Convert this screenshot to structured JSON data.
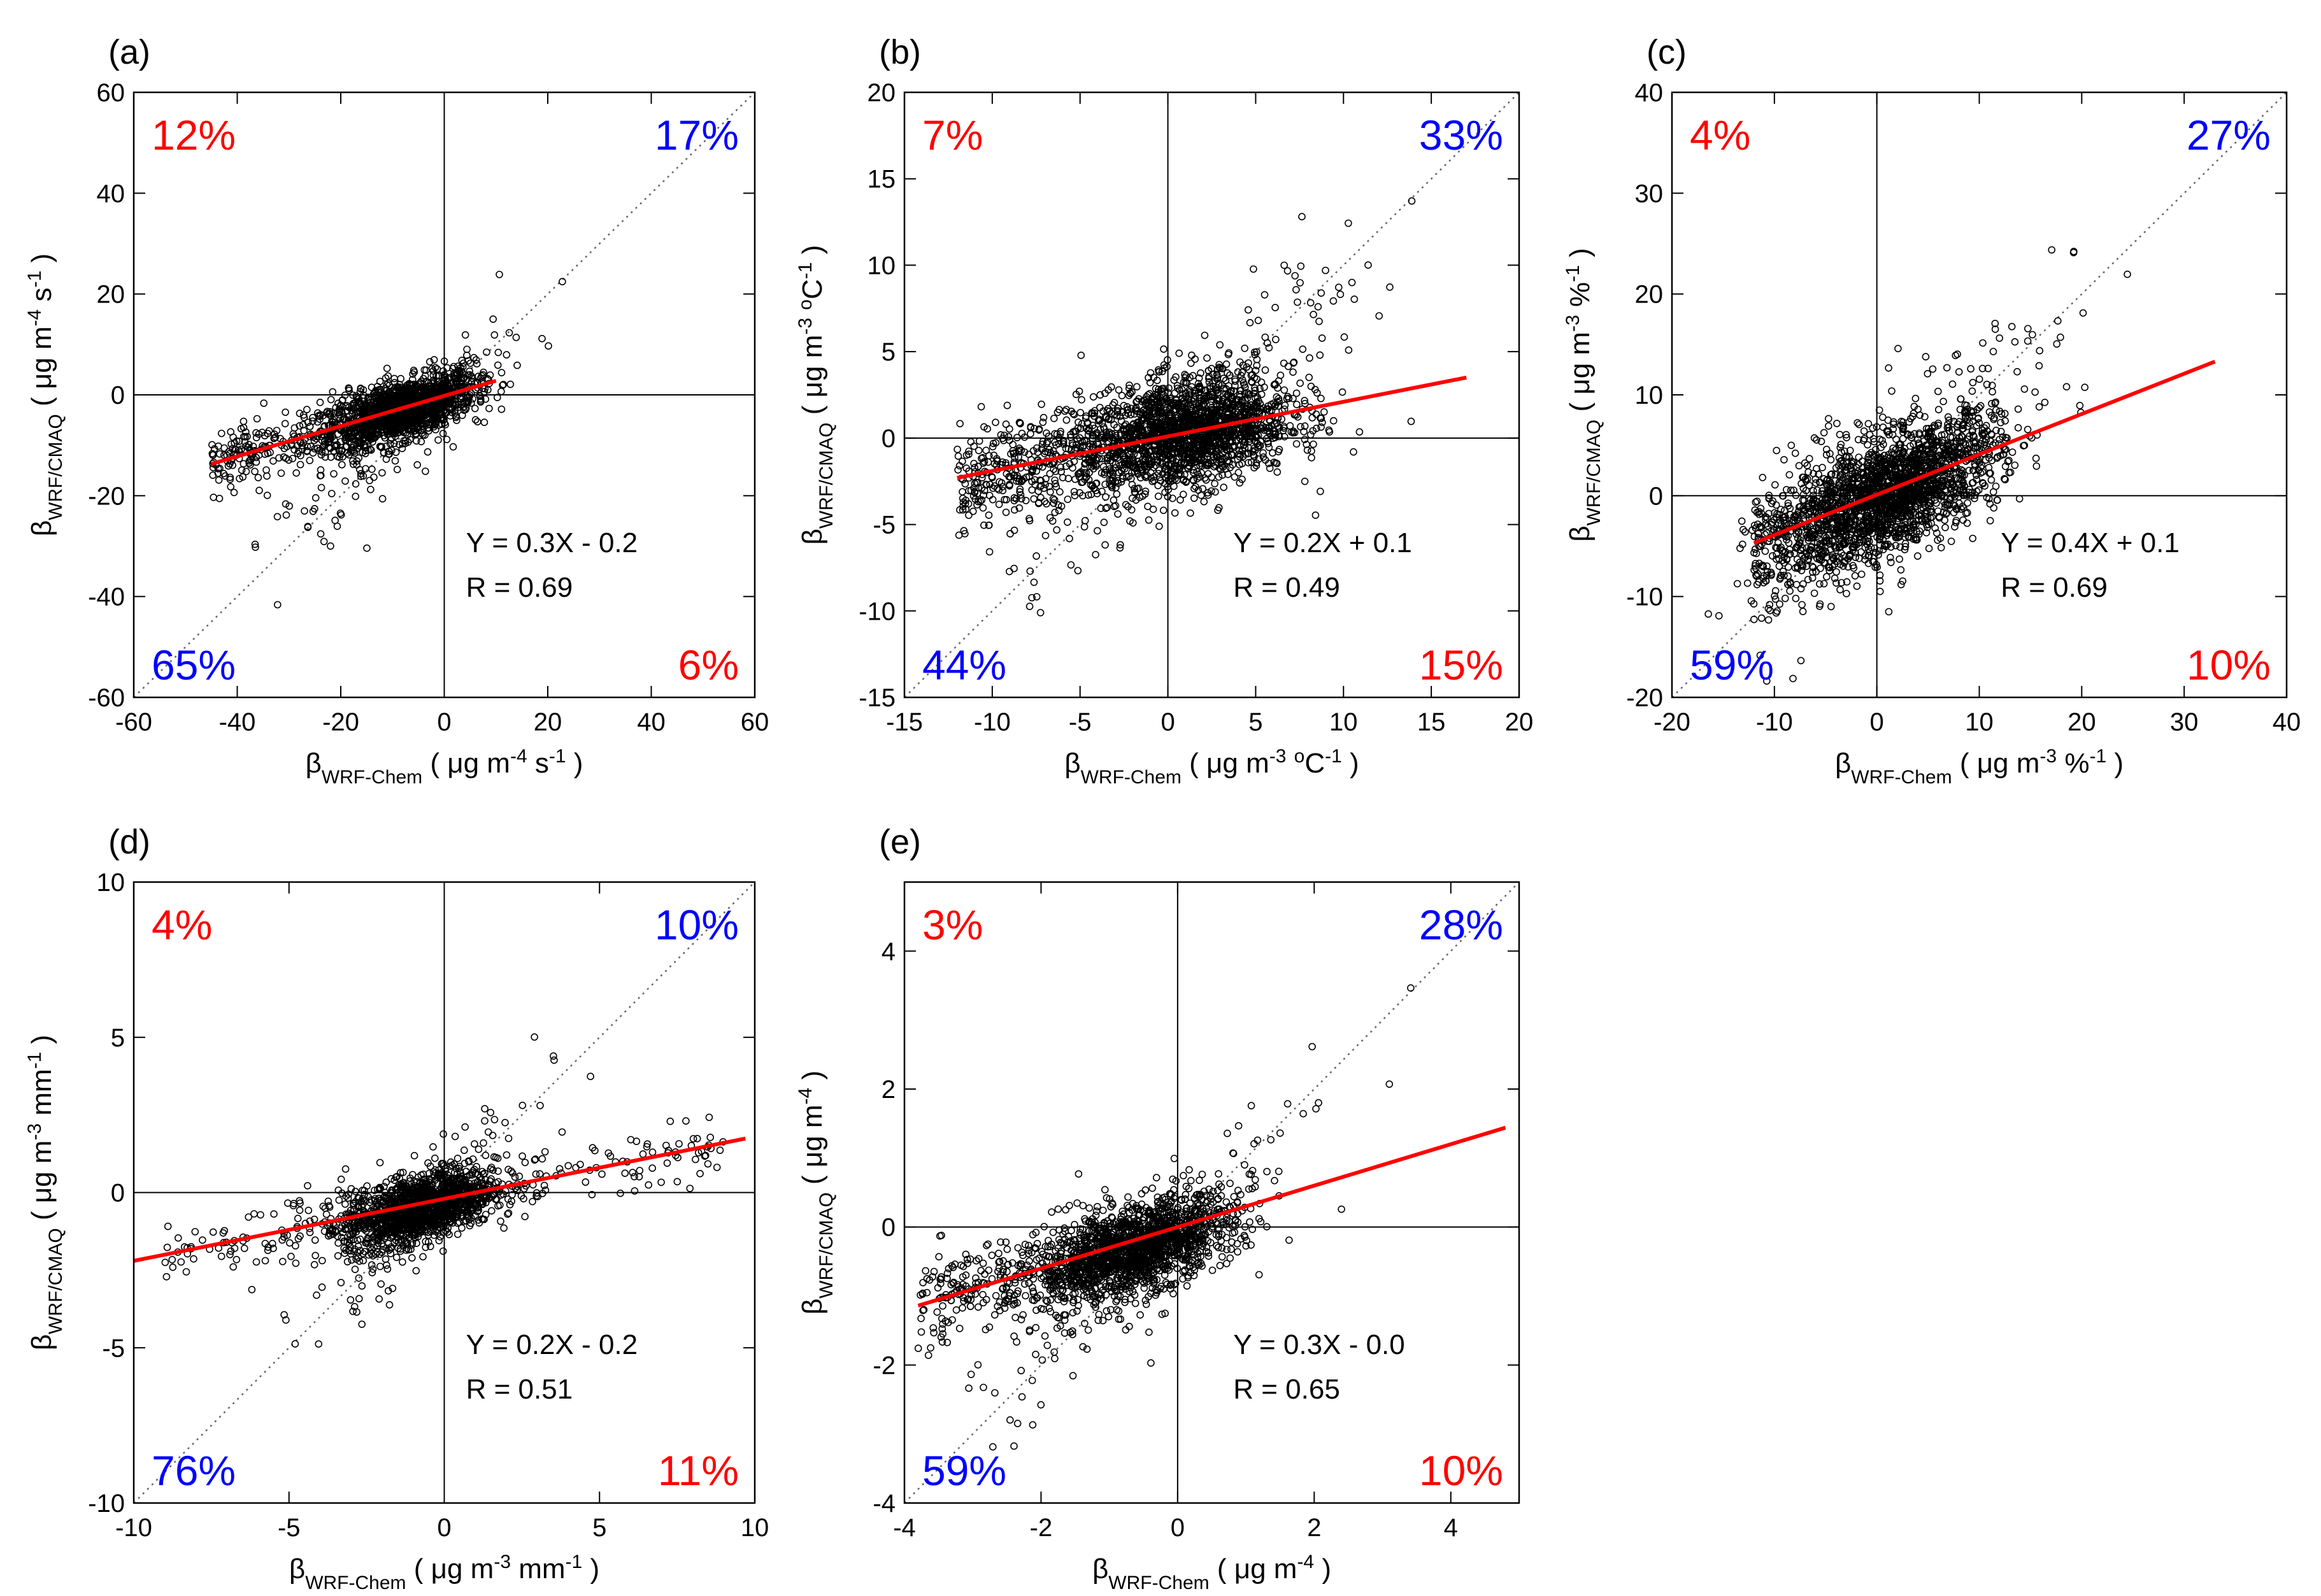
{
  "colors": {
    "fit_line": "#ff0000",
    "pct_red": "#ff0000",
    "pct_blue": "#0000ff",
    "axes": "#000000",
    "points": "#000000",
    "identity": "#666666"
  },
  "chart_data": [
    {
      "type": "scatter",
      "panel": "(a)",
      "xlabel": {
        "base": "β",
        "sub": "WRF-Chem",
        "unit_pre": " ( μg m",
        "unit_sup": "-4",
        "unit_mid": " s",
        "unit_sup2": "-1",
        "unit_end": " )"
      },
      "ylabel": {
        "base": "β",
        "sub": "WRF/CMAQ",
        "unit_pre": " ( μg m",
        "unit_sup": "-4",
        "unit_mid": " s",
        "unit_sup2": "-1",
        "unit_end": " )"
      },
      "xlim": [
        -60,
        60
      ],
      "ylim": [
        -60,
        60
      ],
      "xticks": [
        -60,
        -40,
        -20,
        0,
        20,
        40,
        60
      ],
      "yticks": [
        -60,
        -40,
        -20,
        0,
        20,
        40,
        60
      ],
      "fit": {
        "slope": 0.3,
        "intercept": -0.2,
        "x_range": [
          -45,
          10
        ]
      },
      "equation": "Y = 0.3X - 0.2",
      "r_text": "R = 0.69",
      "quadrant_pct": {
        "top_left": "12%",
        "top_right": "17%",
        "bottom_left": "65%",
        "bottom_right": "6%"
      },
      "cloud": {
        "cx": -8,
        "cy": -3,
        "sx": 7,
        "sy": 3.5,
        "corr": 0.6,
        "n": 1400,
        "tail_x": [
          -45,
          -15
        ],
        "tail_y_slope": 0.3
      }
    },
    {
      "type": "scatter",
      "panel": "(b)",
      "xlabel": {
        "base": "β",
        "sub": "WRF-Chem",
        "unit_pre": " ( μg m",
        "unit_sup": "-3",
        "unit_mid": " ",
        "unit_sup2": "o",
        "unit_end": "C",
        "unit_sup3": "-1",
        "unit_tail": " )"
      },
      "ylabel": {
        "base": "β",
        "sub": "WRF/CMAQ",
        "unit_pre": " ( μg m",
        "unit_sup": "-3",
        "unit_mid": " ",
        "unit_sup2": "o",
        "unit_end": "C",
        "unit_sup3": "-1",
        "unit_tail": " )"
      },
      "xlim": [
        -15,
        20
      ],
      "ylim": [
        -15,
        20
      ],
      "xticks": [
        -15,
        -10,
        -5,
        0,
        5,
        10,
        15,
        20
      ],
      "yticks": [
        -15,
        -10,
        -5,
        0,
        5,
        10,
        15,
        20
      ],
      "fit": {
        "slope": 0.2,
        "intercept": 0.1,
        "x_range": [
          -12,
          17
        ]
      },
      "equation": "Y = 0.2X + 0.1",
      "r_text": "R = 0.49",
      "quadrant_pct": {
        "top_left": "7%",
        "top_right": "33%",
        "bottom_left": "44%",
        "bottom_right": "15%"
      },
      "cloud": {
        "cx": 1,
        "cy": 0.3,
        "sx": 3,
        "sy": 1.6,
        "corr": 0.3,
        "n": 1800,
        "tail_x": [
          -12,
          -4
        ],
        "tail_y_slope": 0.15
      }
    },
    {
      "type": "scatter",
      "panel": "(c)",
      "xlabel": {
        "base": "β",
        "sub": "WRF-Chem",
        "unit_pre": " ( μg m",
        "unit_sup": "-3",
        "unit_mid": " %",
        "unit_sup2": "-1",
        "unit_end": " )"
      },
      "ylabel": {
        "base": "β",
        "sub": "WRF/CMAQ",
        "unit_pre": " ( μg m",
        "unit_sup": "-3",
        "unit_mid": " %",
        "unit_sup2": "-1",
        "unit_end": " )"
      },
      "xlim": [
        -20,
        40
      ],
      "ylim": [
        -20,
        40
      ],
      "xticks": [
        -20,
        -10,
        0,
        10,
        20,
        30,
        40
      ],
      "yticks": [
        -20,
        -10,
        0,
        10,
        20,
        30,
        40
      ],
      "fit": {
        "slope": 0.4,
        "intercept": 0.1,
        "x_range": [
          -12,
          33
        ]
      },
      "equation": "Y = 0.4X + 0.1",
      "r_text": "R = 0.69",
      "quadrant_pct": {
        "top_left": "4%",
        "top_right": "27%",
        "bottom_left": "59%",
        "bottom_right": "10%"
      },
      "cloud": {
        "cx": 2,
        "cy": 0.5,
        "sx": 5,
        "sy": 3.5,
        "corr": 0.6,
        "n": 1800,
        "tail_x": [
          -12,
          -3
        ],
        "tail_y_slope": 0.1
      }
    },
    {
      "type": "scatter",
      "panel": "(d)",
      "xlabel": {
        "base": "β",
        "sub": "WRF-Chem",
        "unit_pre": " ( μg m",
        "unit_sup": "-3",
        "unit_mid": " mm",
        "unit_sup2": "-1",
        "unit_end": " )"
      },
      "ylabel": {
        "base": "β",
        "sub": "WRF/CMAQ",
        "unit_pre": " ( μg m",
        "unit_sup": "-3",
        "unit_mid": " mm",
        "unit_sup2": "-1",
        "unit_end": " )"
      },
      "xlim": [
        -10,
        10
      ],
      "ylim": [
        -10,
        10
      ],
      "xticks": [
        -10,
        -5,
        0,
        5,
        10
      ],
      "yticks": [
        -10,
        -5,
        0,
        5,
        10
      ],
      "fit": {
        "slope": 0.2,
        "intercept": -0.2,
        "x_range": [
          -10,
          9.7
        ]
      },
      "equation": "Y = 0.2X - 0.2",
      "r_text": "R = 0.51",
      "quadrant_pct": {
        "top_left": "4%",
        "top_right": "10%",
        "bottom_left": "76%",
        "bottom_right": "11%"
      },
      "cloud": {
        "cx": -0.8,
        "cy": -0.5,
        "sx": 1.2,
        "sy": 0.6,
        "corr": 0.5,
        "n": 1400,
        "tail_x": [
          -9,
          9
        ],
        "tail_y_slope": 0.2
      }
    },
    {
      "type": "scatter",
      "panel": "(e)",
      "xlabel": {
        "base": "β",
        "sub": "WRF-Chem",
        "unit_pre": " ( μg m",
        "unit_sup": "-4",
        "unit_mid": "",
        "unit_sup2": "",
        "unit_end": " )"
      },
      "ylabel": {
        "base": "β",
        "sub": "WRF/CMAQ",
        "unit_pre": " ( μg m",
        "unit_sup": "-4",
        "unit_mid": "",
        "unit_sup2": "",
        "unit_end": " )"
      },
      "xlim": [
        -4,
        5
      ],
      "ylim": [
        -4,
        5
      ],
      "xticks": [
        -4,
        -2,
        0,
        2,
        4
      ],
      "yticks": [
        -4,
        -2,
        0,
        2,
        4
      ],
      "fit": {
        "slope": 0.3,
        "intercept": 0.0,
        "x_range": [
          -3.8,
          4.8
        ]
      },
      "equation": "Y = 0.3X - 0.0",
      "r_text": "R = 0.65",
      "quadrant_pct": {
        "top_left": "3%",
        "top_right": "28%",
        "bottom_left": "59%",
        "bottom_right": "10%"
      },
      "cloud": {
        "cx": -0.6,
        "cy": -0.3,
        "sx": 0.7,
        "sy": 0.35,
        "corr": 0.55,
        "n": 1600,
        "tail_x": [
          -3.8,
          -1
        ],
        "tail_y_slope": 0.15
      }
    }
  ]
}
